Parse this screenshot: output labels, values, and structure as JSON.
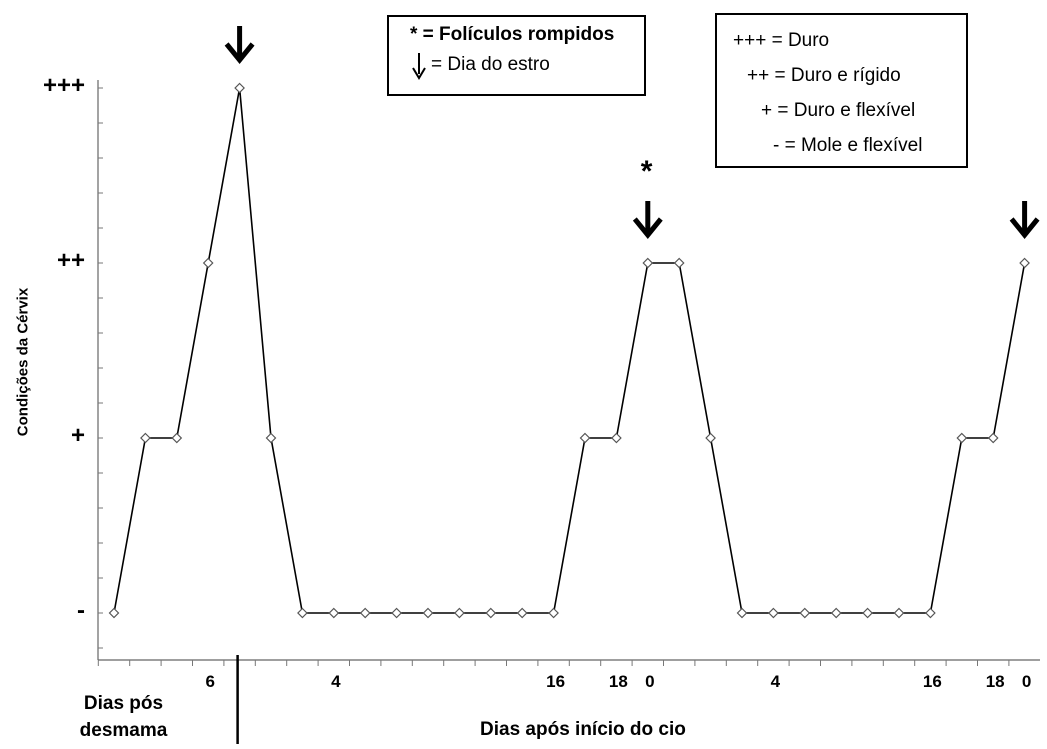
{
  "chart_data": {
    "type": "line",
    "ylabel": "Condições da Cérvix",
    "yticks": [
      {
        "label": "-",
        "level": 0
      },
      {
        "label": "+",
        "level": 1
      },
      {
        "label": "++",
        "level": 2
      },
      {
        "label": "+++",
        "level": 3
      }
    ],
    "series": [
      {
        "values": [
          0,
          1,
          1,
          2,
          3,
          1,
          0,
          0,
          0,
          0,
          0,
          0,
          0,
          0,
          0,
          1,
          1,
          2,
          2,
          1,
          0,
          0,
          0,
          0,
          0,
          0,
          0,
          1,
          1,
          2
        ]
      }
    ],
    "xticklabels": [
      {
        "label": "6",
        "index": 3
      },
      {
        "label": "4",
        "index": 7
      },
      {
        "label": "16",
        "index": 14
      },
      {
        "label": "18",
        "index": 16
      },
      {
        "label": "0",
        "index": 17
      },
      {
        "label": "4",
        "index": 21
      },
      {
        "label": "16",
        "index": 26
      },
      {
        "label": "18",
        "index": 28
      },
      {
        "label": "0",
        "index": 29
      }
    ],
    "estrus_days": [
      4,
      17,
      29
    ],
    "ruptured_follicle_days": [
      17
    ],
    "divider_after_index": 4,
    "xlabel_left": "Dias pós desmama",
    "xlabel_right": "Dias após início do cio",
    "legend_markers": {
      "line1": "* = Folículos rompidos",
      "line2": "= Dia do estro"
    },
    "legend_scale": [
      "+++ = Duro",
      "++ = Duro e rígido",
      "+ = Duro e flexível",
      "- = Mole e flexível"
    ],
    "star_symbol": "*"
  }
}
